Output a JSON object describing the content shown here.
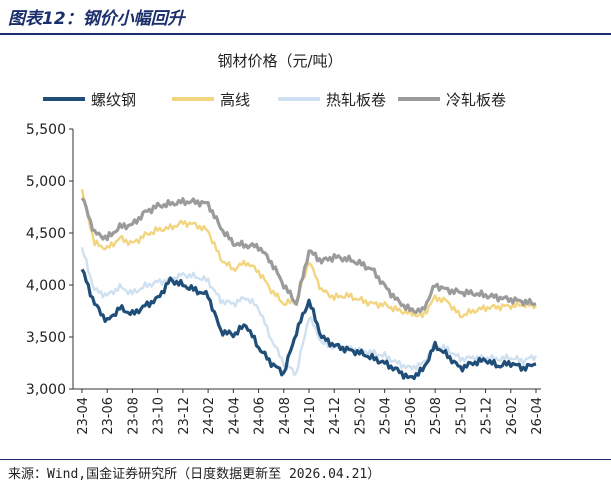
{
  "figure": {
    "title": "图表12：钢价小幅回升",
    "source": "来源：Wind,国金证券研究所（日度数据更新至 2026.04.21）"
  },
  "chart_data": {
    "type": "line",
    "title": "钢材价格（元/吨）",
    "xlabel": "",
    "ylabel": "",
    "ylim": [
      3000,
      5500
    ],
    "yticks": [
      3000,
      3500,
      4000,
      4500,
      5000,
      5500
    ],
    "ytick_labels": [
      "3,000",
      "3,500",
      "4,000",
      "4,500",
      "5,000",
      "5,500"
    ],
    "xticks": [
      "23-04",
      "23-06",
      "23-08",
      "23-10",
      "23-12",
      "24-02",
      "24-04",
      "24-06",
      "24-08",
      "24-10",
      "24-12",
      "25-02",
      "25-04",
      "25-06",
      "25-08",
      "25-10",
      "25-12",
      "26-02",
      "26-04"
    ],
    "x": [
      "23-04",
      "23-05",
      "23-06",
      "23-07",
      "23-08",
      "23-09",
      "23-10",
      "23-11",
      "23-12",
      "24-01",
      "24-02",
      "24-03",
      "24-04",
      "24-05",
      "24-06",
      "24-07",
      "24-08",
      "24-09",
      "24-10",
      "24-11",
      "24-12",
      "25-01",
      "25-02",
      "25-03",
      "25-04",
      "25-05",
      "25-06",
      "25-07",
      "25-08",
      "25-09",
      "25-10",
      "25-11",
      "25-12",
      "26-01",
      "26-02",
      "26-03",
      "26-04"
    ],
    "legend_position": "top",
    "grid": false,
    "series": [
      {
        "name": "螺纹钢",
        "color": "#1f4e79",
        "width": 3.2,
        "values": [
          4150,
          3820,
          3650,
          3780,
          3720,
          3800,
          3870,
          4050,
          4000,
          3950,
          3900,
          3560,
          3520,
          3620,
          3400,
          3250,
          3150,
          3550,
          3850,
          3500,
          3420,
          3380,
          3350,
          3300,
          3250,
          3180,
          3100,
          3180,
          3420,
          3320,
          3200,
          3250,
          3280,
          3220,
          3250,
          3200,
          3240
        ]
      },
      {
        "name": "高线",
        "color": "#f2d57e",
        "width": 2.4,
        "values": [
          4900,
          4400,
          4350,
          4450,
          4400,
          4480,
          4530,
          4550,
          4600,
          4580,
          4520,
          4250,
          4150,
          4220,
          4130,
          3950,
          3820,
          3850,
          4230,
          3950,
          3880,
          3900,
          3860,
          3820,
          3810,
          3760,
          3730,
          3700,
          3880,
          3840,
          3700,
          3750,
          3780,
          3790,
          3800,
          3810,
          3800
        ]
      },
      {
        "name": "热轧板卷",
        "color": "#cfe0f1",
        "width": 2.4,
        "values": [
          4350,
          3950,
          3900,
          3980,
          3920,
          3990,
          4030,
          4050,
          4100,
          4080,
          4040,
          3850,
          3820,
          3880,
          3780,
          3480,
          3250,
          3150,
          3700,
          3450,
          3400,
          3400,
          3370,
          3350,
          3320,
          3250,
          3200,
          3240,
          3420,
          3380,
          3290,
          3300,
          3300,
          3290,
          3300,
          3270,
          3320
        ]
      },
      {
        "name": "冷轧板卷",
        "color": "#9b9b9b",
        "width": 3.2,
        "values": [
          4850,
          4500,
          4450,
          4560,
          4580,
          4700,
          4760,
          4780,
          4800,
          4800,
          4780,
          4550,
          4400,
          4380,
          4370,
          4220,
          4000,
          3820,
          4330,
          4230,
          4270,
          4250,
          4210,
          4150,
          3990,
          3850,
          3760,
          3750,
          4000,
          3950,
          3930,
          3920,
          3900,
          3880,
          3860,
          3840,
          3820
        ]
      }
    ]
  }
}
